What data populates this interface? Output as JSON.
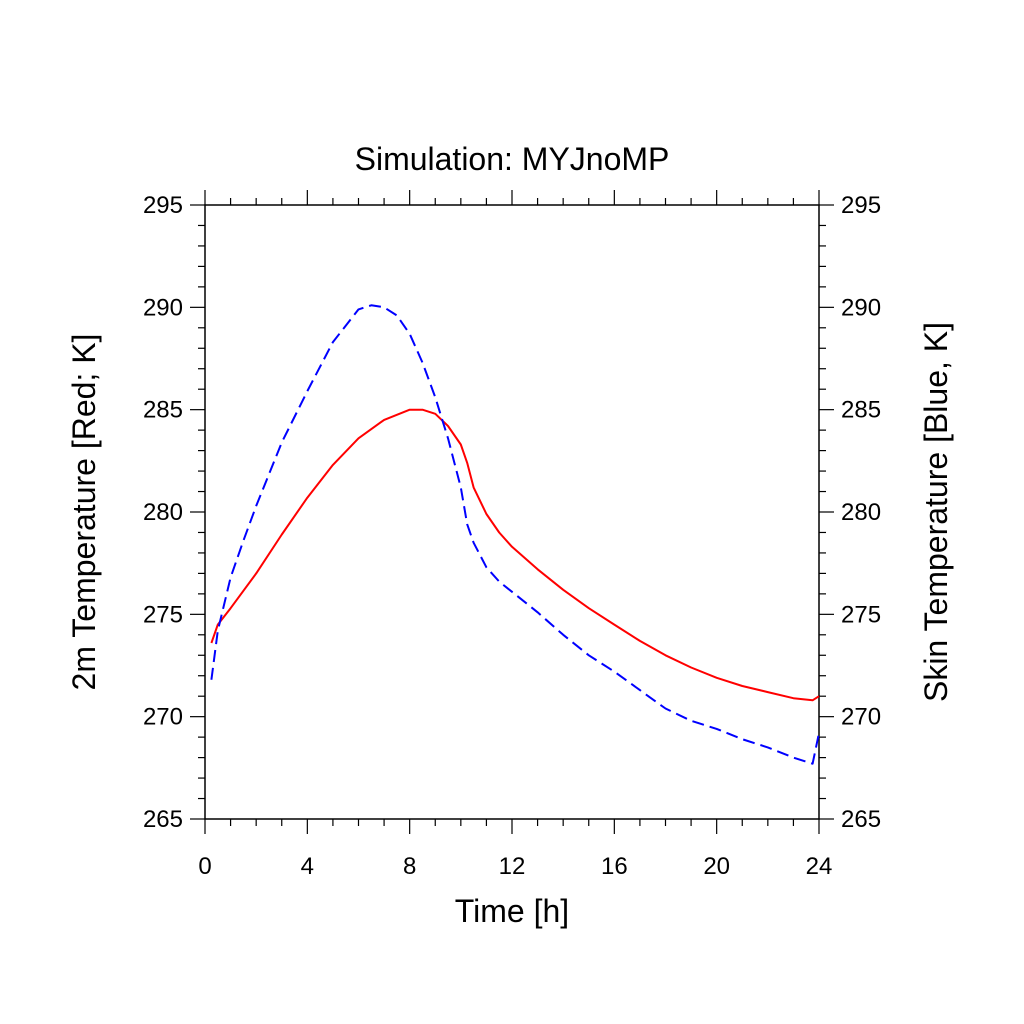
{
  "chart_data": {
    "type": "line",
    "title": "Simulation: MYJnoMP",
    "xlabel": "Time [h]",
    "ylabel_left": "2m Temperature [Red; K]",
    "ylabel_right": "Skin Temperature [Blue, K]",
    "xlim": [
      0,
      24
    ],
    "ylim": [
      265,
      295
    ],
    "xticks": [
      "0",
      "4",
      "8",
      "12",
      "16",
      "20",
      "24"
    ],
    "yticks": [
      "265",
      "270",
      "275",
      "280",
      "285",
      "290",
      "295"
    ],
    "grid": false,
    "series": [
      {
        "color": "#ff0000",
        "style": "solid",
        "axis": "left",
        "x": [
          0.25,
          0.5,
          1,
          2,
          3,
          4,
          5,
          6,
          7,
          8,
          8.5,
          9,
          9.5,
          10,
          10.25,
          10.5,
          11,
          11.5,
          12,
          13,
          14,
          15,
          16,
          17,
          18,
          19,
          20,
          21,
          22,
          23,
          23.75,
          24
        ],
        "y": [
          273.6,
          274.5,
          275.3,
          277.0,
          278.9,
          280.7,
          282.3,
          283.6,
          284.5,
          285.0,
          285.0,
          284.8,
          284.2,
          283.3,
          282.4,
          281.2,
          279.9,
          279.0,
          278.3,
          277.2,
          276.2,
          275.3,
          274.5,
          273.7,
          273.0,
          272.4,
          271.9,
          271.5,
          271.2,
          270.9,
          270.8,
          271.0
        ]
      },
      {
        "color": "#0000ff",
        "style": "dashed",
        "axis": "right",
        "x": [
          0.25,
          0.5,
          1,
          1.5,
          2,
          3,
          4,
          5,
          6,
          6.5,
          7,
          7.5,
          8,
          8.5,
          9,
          9.5,
          10,
          10.25,
          10.5,
          11,
          11.5,
          12,
          13,
          14,
          15,
          16,
          17,
          18,
          19,
          20,
          21,
          22,
          23,
          23.75,
          24
        ],
        "y": [
          271.8,
          274.2,
          276.8,
          278.6,
          280.3,
          283.4,
          285.9,
          288.3,
          289.9,
          290.1,
          290.0,
          289.6,
          288.7,
          287.3,
          285.6,
          283.6,
          281.2,
          279.4,
          278.5,
          277.3,
          276.6,
          276.1,
          275.1,
          274.0,
          273.0,
          272.2,
          271.3,
          270.4,
          269.8,
          269.4,
          268.9,
          268.5,
          268.0,
          267.7,
          269.2
        ]
      }
    ]
  }
}
